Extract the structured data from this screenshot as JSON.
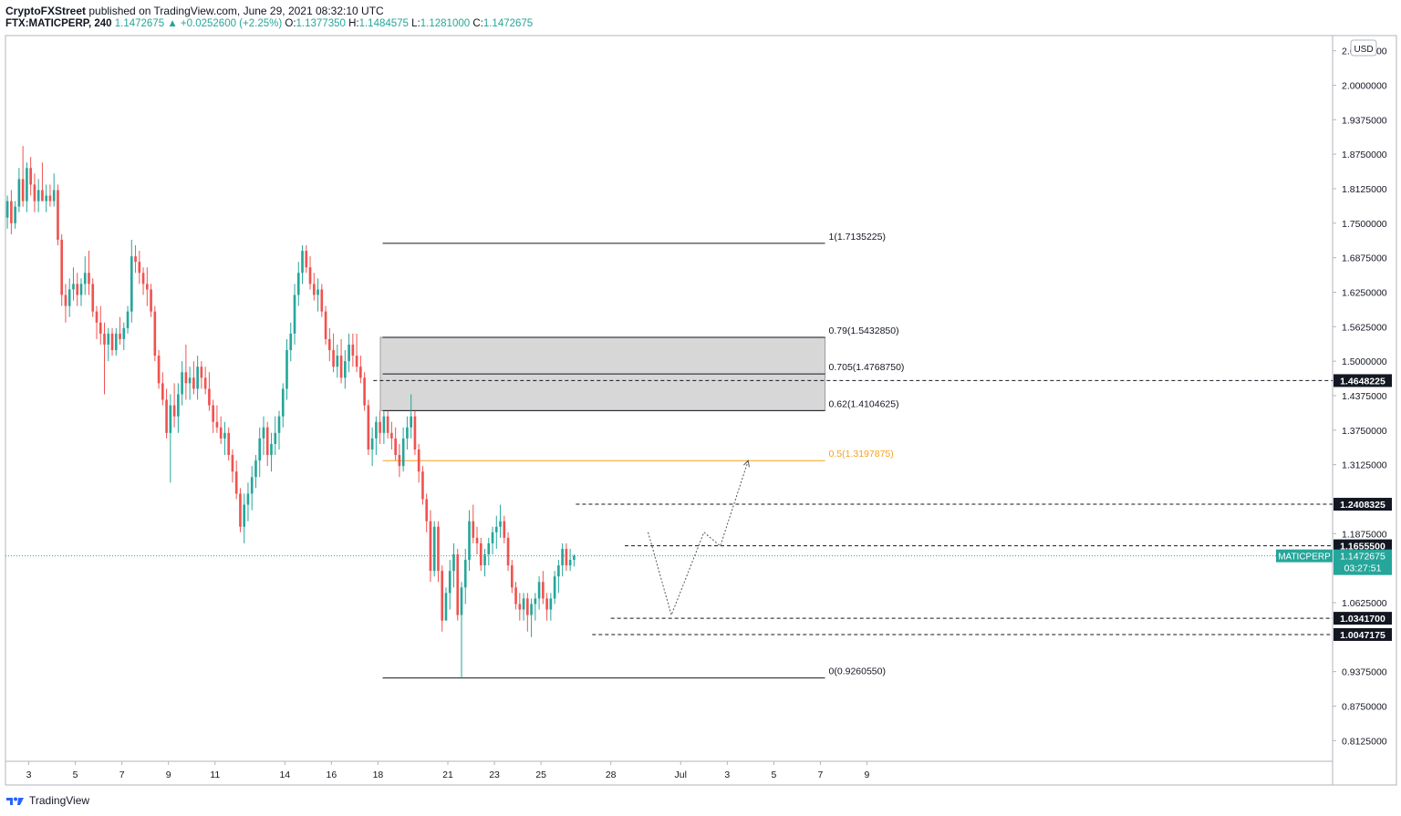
{
  "header": {
    "publisher": "CryptoFXStreet",
    "published_text": "published on TradingView.com, June 29, 2021 08:32:10 UTC",
    "symbol": "FTX:MATICPERP, 240",
    "last": "1.1472675",
    "change": "+0.0252600 (+2.25%)",
    "o_label": "O:",
    "o": "1.1377350",
    "h_label": "H:",
    "h": "1.1484575",
    "l_label": "L:",
    "l": "1.1281000",
    "c_label": "C:",
    "c": "1.1472675"
  },
  "footer": {
    "brand": "TradingView"
  },
  "colors": {
    "up": "#26a69a",
    "down": "#ef5350",
    "fib_half": "#f7a21b",
    "zone": "#d3d3d3"
  },
  "chart_data": {
    "type": "candlestick",
    "currency": "USD",
    "ylim": [
      0.775,
      2.09
    ],
    "xlim": [
      0,
      57
    ],
    "y_ticks": [
      {
        "v": 2.0625,
        "label": "2.0625000"
      },
      {
        "v": 2.0,
        "label": "2.0000000"
      },
      {
        "v": 1.9375,
        "label": "1.9375000"
      },
      {
        "v": 1.875,
        "label": "1.8750000"
      },
      {
        "v": 1.8125,
        "label": "1.8125000"
      },
      {
        "v": 1.75,
        "label": "1.7500000"
      },
      {
        "v": 1.6875,
        "label": "1.6875000"
      },
      {
        "v": 1.625,
        "label": "1.6250000"
      },
      {
        "v": 1.5625,
        "label": "1.5625000"
      },
      {
        "v": 1.5,
        "label": "1.5000000"
      },
      {
        "v": 1.4375,
        "label": "1.4375000"
      },
      {
        "v": 1.375,
        "label": "1.3750000"
      },
      {
        "v": 1.3125,
        "label": "1.3125000"
      },
      {
        "v": 1.1875,
        "label": "1.1875000"
      },
      {
        "v": 1.0625,
        "label": "1.0625000"
      },
      {
        "v": 0.9375,
        "label": "0.9375000"
      },
      {
        "v": 0.875,
        "label": "0.8750000"
      },
      {
        "v": 0.8125,
        "label": "0.8125000"
      }
    ],
    "x_ticks": [
      {
        "d": 1,
        "label": "3"
      },
      {
        "d": 3,
        "label": "5"
      },
      {
        "d": 5,
        "label": "7"
      },
      {
        "d": 7,
        "label": "9"
      },
      {
        "d": 9,
        "label": "11"
      },
      {
        "d": 12,
        "label": "14"
      },
      {
        "d": 14,
        "label": "16"
      },
      {
        "d": 16,
        "label": "18"
      },
      {
        "d": 19,
        "label": "21"
      },
      {
        "d": 21,
        "label": "23"
      },
      {
        "d": 23,
        "label": "25"
      },
      {
        "d": 26,
        "label": "28"
      },
      {
        "d": 29,
        "label": "Jul"
      },
      {
        "d": 31,
        "label": "3"
      },
      {
        "d": 33,
        "label": "5"
      },
      {
        "d": 35,
        "label": "7"
      },
      {
        "d": 37,
        "label": "9"
      }
    ],
    "ohlc": [
      [
        1.76,
        1.8,
        1.74,
        1.79
      ],
      [
        1.79,
        1.81,
        1.73,
        1.75
      ],
      [
        1.75,
        1.79,
        1.74,
        1.78
      ],
      [
        1.78,
        1.85,
        1.77,
        1.83
      ],
      [
        1.83,
        1.89,
        1.78,
        1.79
      ],
      [
        1.79,
        1.86,
        1.77,
        1.85
      ],
      [
        1.85,
        1.87,
        1.8,
        1.82
      ],
      [
        1.82,
        1.84,
        1.77,
        1.79
      ],
      [
        1.79,
        1.83,
        1.77,
        1.81
      ],
      [
        1.81,
        1.86,
        1.79,
        1.79
      ],
      [
        1.79,
        1.82,
        1.77,
        1.8
      ],
      [
        1.8,
        1.82,
        1.78,
        1.79
      ],
      [
        1.79,
        1.84,
        1.78,
        1.81
      ],
      [
        1.81,
        1.82,
        1.71,
        1.72
      ],
      [
        1.72,
        1.73,
        1.6,
        1.62
      ],
      [
        1.62,
        1.64,
        1.57,
        1.6
      ],
      [
        1.6,
        1.65,
        1.58,
        1.63
      ],
      [
        1.63,
        1.67,
        1.61,
        1.64
      ],
      [
        1.64,
        1.66,
        1.6,
        1.62
      ],
      [
        1.62,
        1.65,
        1.6,
        1.64
      ],
      [
        1.64,
        1.69,
        1.62,
        1.66
      ],
      [
        1.66,
        1.7,
        1.62,
        1.64
      ],
      [
        1.64,
        1.65,
        1.58,
        1.59
      ],
      [
        1.59,
        1.6,
        1.54,
        1.57
      ],
      [
        1.57,
        1.6,
        1.53,
        1.55
      ],
      [
        1.55,
        1.57,
        1.44,
        1.53
      ],
      [
        1.53,
        1.56,
        1.5,
        1.55
      ],
      [
        1.55,
        1.56,
        1.51,
        1.52
      ],
      [
        1.52,
        1.56,
        1.51,
        1.55
      ],
      [
        1.55,
        1.58,
        1.53,
        1.54
      ],
      [
        1.54,
        1.57,
        1.52,
        1.56
      ],
      [
        1.56,
        1.6,
        1.55,
        1.59
      ],
      [
        1.59,
        1.72,
        1.57,
        1.69
      ],
      [
        1.69,
        1.71,
        1.66,
        1.68
      ],
      [
        1.68,
        1.7,
        1.64,
        1.66
      ],
      [
        1.66,
        1.67,
        1.62,
        1.64
      ],
      [
        1.64,
        1.67,
        1.6,
        1.63
      ],
      [
        1.63,
        1.64,
        1.58,
        1.59
      ],
      [
        1.59,
        1.6,
        1.5,
        1.51
      ],
      [
        1.51,
        1.52,
        1.45,
        1.46
      ],
      [
        1.46,
        1.48,
        1.42,
        1.43
      ],
      [
        1.43,
        1.45,
        1.36,
        1.37
      ],
      [
        1.37,
        1.44,
        1.28,
        1.42
      ],
      [
        1.42,
        1.46,
        1.38,
        1.4
      ],
      [
        1.4,
        1.46,
        1.37,
        1.44
      ],
      [
        1.44,
        1.5,
        1.42,
        1.48
      ],
      [
        1.48,
        1.53,
        1.43,
        1.46
      ],
      [
        1.46,
        1.49,
        1.43,
        1.47
      ],
      [
        1.47,
        1.5,
        1.44,
        1.45
      ],
      [
        1.45,
        1.51,
        1.43,
        1.49
      ],
      [
        1.49,
        1.5,
        1.45,
        1.47
      ],
      [
        1.47,
        1.49,
        1.44,
        1.45
      ],
      [
        1.45,
        1.48,
        1.41,
        1.42
      ],
      [
        1.42,
        1.43,
        1.37,
        1.39
      ],
      [
        1.39,
        1.42,
        1.37,
        1.38
      ],
      [
        1.38,
        1.4,
        1.35,
        1.36
      ],
      [
        1.36,
        1.39,
        1.33,
        1.37
      ],
      [
        1.37,
        1.38,
        1.32,
        1.33
      ],
      [
        1.33,
        1.34,
        1.28,
        1.3
      ],
      [
        1.3,
        1.32,
        1.25,
        1.26
      ],
      [
        1.26,
        1.27,
        1.19,
        1.2
      ],
      [
        1.2,
        1.26,
        1.17,
        1.24
      ],
      [
        1.24,
        1.28,
        1.21,
        1.26
      ],
      [
        1.26,
        1.31,
        1.23,
        1.29
      ],
      [
        1.29,
        1.33,
        1.27,
        1.32
      ],
      [
        1.32,
        1.38,
        1.29,
        1.36
      ],
      [
        1.36,
        1.4,
        1.33,
        1.38
      ],
      [
        1.38,
        1.39,
        1.31,
        1.33
      ],
      [
        1.33,
        1.37,
        1.3,
        1.35
      ],
      [
        1.35,
        1.4,
        1.33,
        1.37
      ],
      [
        1.37,
        1.41,
        1.34,
        1.4
      ],
      [
        1.4,
        1.46,
        1.38,
        1.45
      ],
      [
        1.45,
        1.54,
        1.43,
        1.52
      ],
      [
        1.52,
        1.57,
        1.5,
        1.55
      ],
      [
        1.55,
        1.64,
        1.53,
        1.62
      ],
      [
        1.62,
        1.68,
        1.6,
        1.66
      ],
      [
        1.66,
        1.71,
        1.64,
        1.7
      ],
      [
        1.7,
        1.71,
        1.66,
        1.67
      ],
      [
        1.67,
        1.69,
        1.63,
        1.64
      ],
      [
        1.64,
        1.66,
        1.61,
        1.62
      ],
      [
        1.62,
        1.65,
        1.59,
        1.63
      ],
      [
        1.63,
        1.64,
        1.58,
        1.59
      ],
      [
        1.59,
        1.6,
        1.53,
        1.54
      ],
      [
        1.54,
        1.56,
        1.5,
        1.52
      ],
      [
        1.52,
        1.55,
        1.48,
        1.49
      ],
      [
        1.49,
        1.53,
        1.47,
        1.51
      ],
      [
        1.51,
        1.54,
        1.46,
        1.47
      ],
      [
        1.47,
        1.52,
        1.45,
        1.5
      ],
      [
        1.5,
        1.55,
        1.48,
        1.53
      ],
      [
        1.53,
        1.55,
        1.49,
        1.51
      ],
      [
        1.51,
        1.55,
        1.48,
        1.49
      ],
      [
        1.49,
        1.51,
        1.46,
        1.47
      ],
      [
        1.47,
        1.48,
        1.41,
        1.42
      ],
      [
        1.42,
        1.43,
        1.33,
        1.34
      ],
      [
        1.34,
        1.38,
        1.31,
        1.36
      ],
      [
        1.36,
        1.4,
        1.33,
        1.39
      ],
      [
        1.39,
        1.41,
        1.35,
        1.37
      ],
      [
        1.37,
        1.41,
        1.35,
        1.4
      ],
      [
        1.4,
        1.41,
        1.36,
        1.37
      ],
      [
        1.37,
        1.39,
        1.34,
        1.36
      ],
      [
        1.36,
        1.38,
        1.32,
        1.33
      ],
      [
        1.33,
        1.35,
        1.29,
        1.31
      ],
      [
        1.31,
        1.38,
        1.3,
        1.36
      ],
      [
        1.36,
        1.4,
        1.34,
        1.38
      ],
      [
        1.38,
        1.44,
        1.36,
        1.4
      ],
      [
        1.4,
        1.41,
        1.33,
        1.34
      ],
      [
        1.34,
        1.35,
        1.28,
        1.3
      ],
      [
        1.3,
        1.31,
        1.24,
        1.25
      ],
      [
        1.25,
        1.26,
        1.19,
        1.21
      ],
      [
        1.21,
        1.23,
        1.1,
        1.12
      ],
      [
        1.12,
        1.21,
        1.11,
        1.2
      ],
      [
        1.2,
        1.21,
        1.1,
        1.12
      ],
      [
        1.12,
        1.13,
        1.01,
        1.03
      ],
      [
        1.03,
        1.09,
        1.03,
        1.08
      ],
      [
        1.08,
        1.14,
        1.05,
        1.12
      ],
      [
        1.12,
        1.17,
        1.09,
        1.15
      ],
      [
        1.15,
        1.16,
        1.03,
        1.04
      ],
      [
        1.04,
        1.1,
        0.926,
        1.09
      ],
      [
        1.09,
        1.16,
        1.06,
        1.14
      ],
      [
        1.14,
        1.23,
        1.12,
        1.21
      ],
      [
        1.21,
        1.24,
        1.17,
        1.18
      ],
      [
        1.18,
        1.2,
        1.15,
        1.17
      ],
      [
        1.17,
        1.18,
        1.12,
        1.13
      ],
      [
        1.13,
        1.16,
        1.11,
        1.15
      ],
      [
        1.15,
        1.18,
        1.13,
        1.17
      ],
      [
        1.17,
        1.2,
        1.15,
        1.19
      ],
      [
        1.19,
        1.22,
        1.16,
        1.2
      ],
      [
        1.2,
        1.24,
        1.18,
        1.21
      ],
      [
        1.21,
        1.22,
        1.17,
        1.18
      ],
      [
        1.18,
        1.19,
        1.12,
        1.13
      ],
      [
        1.13,
        1.14,
        1.08,
        1.09
      ],
      [
        1.09,
        1.1,
        1.05,
        1.06
      ],
      [
        1.06,
        1.08,
        1.03,
        1.05
      ],
      [
        1.05,
        1.08,
        1.03,
        1.07
      ],
      [
        1.07,
        1.08,
        1.01,
        1.04
      ],
      [
        1.04,
        1.07,
        1.0,
        1.06
      ],
      [
        1.06,
        1.08,
        1.03,
        1.07
      ],
      [
        1.07,
        1.11,
        1.05,
        1.1
      ],
      [
        1.1,
        1.12,
        1.06,
        1.07
      ],
      [
        1.07,
        1.08,
        1.03,
        1.05
      ],
      [
        1.05,
        1.08,
        1.03,
        1.07
      ],
      [
        1.07,
        1.12,
        1.06,
        1.11
      ],
      [
        1.11,
        1.14,
        1.08,
        1.13
      ],
      [
        1.13,
        1.17,
        1.11,
        1.16
      ],
      [
        1.16,
        1.17,
        1.12,
        1.13
      ],
      [
        1.13,
        1.16,
        1.12,
        1.14
      ],
      [
        1.14,
        1.15,
        1.128,
        1.147
      ]
    ],
    "fib_levels": [
      {
        "v": 1.7135225,
        "label": "1(1.7135225)",
        "color": "#787b86"
      },
      {
        "v": 1.543285,
        "label": "0.79(1.5432850)",
        "color": "#787b86"
      },
      {
        "v": 1.476875,
        "label": "0.705(1.4768750)",
        "color": "#787b86"
      },
      {
        "v": 1.4104625,
        "label": "0.62(1.4104625)",
        "color": "#787b86"
      },
      {
        "v": 1.3197875,
        "label": "0.5(1.3197875)",
        "color": "#f7a21b"
      },
      {
        "v": 0.926055,
        "label": "0(0.9260550)",
        "color": "#787b86"
      }
    ],
    "fib_x_range": [
      16.2,
      35.2
    ],
    "zone": {
      "from": 1.4104625,
      "to": 1.543285,
      "x_range": [
        16.1,
        35.2
      ]
    },
    "dashed_levels": [
      {
        "v": 1.4648225,
        "label": "1.4648225",
        "x_from": 15.8
      },
      {
        "v": 1.2408325,
        "label": "1.2408325",
        "x_from": 24.5
      },
      {
        "v": 1.16555,
        "label": "1.1655500",
        "x_from": 26.6
      },
      {
        "v": 1.03417,
        "label": "1.0341700",
        "x_from": 26.0
      },
      {
        "v": 1.0047175,
        "label": "1.0047175",
        "x_from": 25.2
      }
    ],
    "current_price": {
      "v": 1.1472675,
      "name": "MATICPERP",
      "label": "1.1472675",
      "countdown": "03:27:51"
    },
    "projection_path": [
      [
        27.6,
        1.19
      ],
      [
        28.6,
        1.04
      ],
      [
        30.0,
        1.19
      ],
      [
        30.7,
        1.165
      ],
      [
        31.9,
        1.3197875
      ]
    ],
    "bar_days_per_candle": 0.1667
  }
}
